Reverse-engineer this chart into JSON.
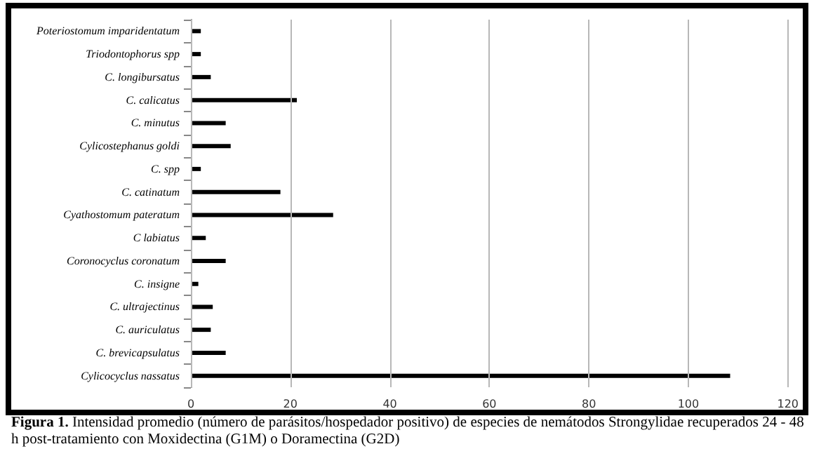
{
  "chart_data": {
    "type": "bar",
    "orientation": "horizontal",
    "categories": [
      "Poteriostomum imparidentatum",
      "Triodontophorus spp",
      "C. longibursatus",
      "C. calicatus",
      "C. minutus",
      "Cylicostephanus goldi",
      "C. spp",
      "C. catinatum",
      "Cyathostomum pateratum",
      "C labiatus",
      "Coronocyclus coronatum",
      "C. insigne",
      "C. ultrajectinus",
      "C. auriculatus",
      "C. brevicapsulatus",
      "Cylicocyclus nassatus"
    ],
    "values": [
      2,
      2,
      4,
      21.3,
      7,
      8,
      2,
      18,
      28.6,
      3,
      7,
      1.5,
      4.4,
      4,
      7,
      108.4
    ],
    "color": "#000000",
    "xlim": [
      0,
      120
    ],
    "xticks": [
      0,
      20,
      40,
      60,
      80,
      100,
      120
    ],
    "grid": "x",
    "annotations": [
      "Figura 1. Intensidad promedio (número de parásitos/hospedador positivo) de especies de nemátodos Strongylidae recuperados 24 - 48 h post-tratamiento con Moxidectina (G1M) o Doramectina (G2D)"
    ]
  }
}
